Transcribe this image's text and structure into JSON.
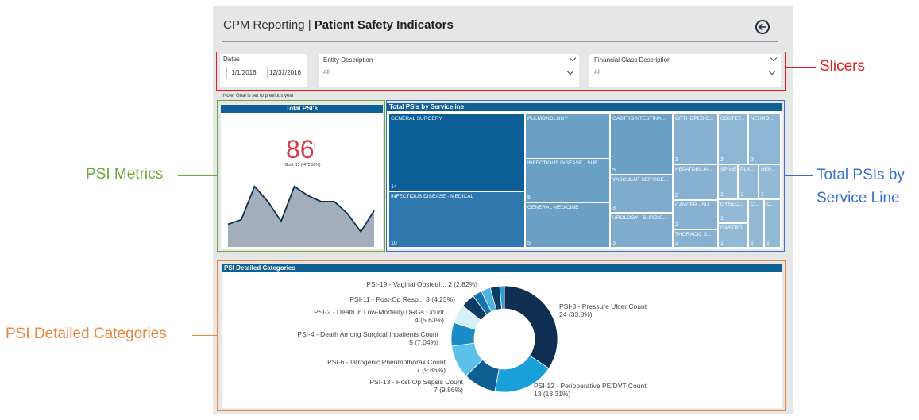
{
  "header": {
    "title_prefix": "CPM Reporting",
    "title_sep": " | ",
    "title_main": "Patient Safety Indicators"
  },
  "slicers": {
    "dates": {
      "label": "Dates",
      "start": "1/1/2016",
      "end": "12/31/2016"
    },
    "entity": {
      "label": "Entity Description",
      "value": "All"
    },
    "financial": {
      "label": "Financial Class Description",
      "value": "All"
    }
  },
  "note": "Note: Goal is set to previous year",
  "metrics": {
    "title": "Total PSI's",
    "value": "86",
    "marker": "!",
    "goal": "Goal: 15 (-473.33%)",
    "sparkline": [
      15,
      18,
      40,
      30,
      17,
      40,
      34,
      30,
      30,
      22,
      10,
      24
    ]
  },
  "treemap": {
    "title": "Total PSIs by Serviceline",
    "tiles": [
      {
        "label": "GENERAL SURGERY",
        "value": "14",
        "color": "#0b5f96"
      },
      {
        "label": "INFECTIOUS DISEASE - MEDICAL",
        "value": "10",
        "color": "#2e78ad"
      },
      {
        "label": "PULMONOLOGY",
        "value": "5",
        "color": "#6a9fc6"
      },
      {
        "label": "INFECTIOUS DISEASE - SUR...",
        "value": "5",
        "color": "#6a9fc6"
      },
      {
        "label": "GENERAL MEDICINE",
        "value": "5",
        "color": "#6a9fc6"
      },
      {
        "label": "GASTROINTESTINA...",
        "value": "5",
        "color": "#6a9fc6"
      },
      {
        "label": "VASCULAR SERVICE...",
        "value": "3",
        "color": "#7fabcd"
      },
      {
        "label": "UROLOGY - SURGIC...",
        "value": "3",
        "color": "#7fabcd"
      },
      {
        "label": "ORTHOPEDIC...",
        "value": "3",
        "color": "#86b1d1"
      },
      {
        "label": "HEPATOBILIA...",
        "value": "2",
        "color": "#86b1d1"
      },
      {
        "label": "CANCER - SU...",
        "value": "2",
        "color": "#86b1d1"
      },
      {
        "label": "THORACIC S...",
        "value": "2",
        "color": "#86b1d1"
      },
      {
        "label": "OBSTET...",
        "value": "2",
        "color": "#8db6d4"
      },
      {
        "label": "NEURO...",
        "value": "2",
        "color": "#8db6d4"
      },
      {
        "label": "SPINE",
        "value": "1",
        "color": "#92b9d6"
      },
      {
        "label": "PLA...",
        "value": "1",
        "color": "#92b9d6"
      },
      {
        "label": "NEP...",
        "value": "1",
        "color": "#92b9d6"
      },
      {
        "label": "GYNEC...",
        "value": "1",
        "color": "#92b9d6"
      },
      {
        "label": "GASTRO...",
        "value": "1",
        "color": "#92b9d6"
      },
      {
        "label": "C...",
        "value": "1",
        "color": "#92b9d6"
      },
      {
        "label": "C...",
        "value": "1",
        "color": "#92b9d6"
      }
    ]
  },
  "detail": {
    "title": "PSI Detailed Categories",
    "slices": [
      {
        "label": "PSI-3 - Pressure Ulcer Count",
        "value_text": "24 (33.8%)",
        "value": 24,
        "color": "#0e2f52"
      },
      {
        "label": "PSI-12 - Perioperative PE/DVT Count",
        "value_text": "13 (18.31%)",
        "value": 13,
        "color": "#1aa0d8"
      },
      {
        "label": "PSI-13 - Post-Op Sepsis Count",
        "value_text": "7 (9.86%)",
        "value": 7,
        "color": "#0e5f93"
      },
      {
        "label": "PSI-6 - Iatrogenic Pneumothorax Count",
        "value_text": "7 (9.86%)",
        "value": 7,
        "color": "#5bc1e8"
      },
      {
        "label": "PSI-4 - Death Among Surgical Inpatients Count",
        "value_text": "5 (7.04%)",
        "value": 5,
        "color": "#1b8cc6"
      },
      {
        "label": "PSI-2 - Death in Low-Mortality DRGs Count",
        "value_text": "4 (5.63%)",
        "value": 4,
        "color": "#d6f0fa"
      },
      {
        "label": "PSI-11 - Post-Op Resp...",
        "value_text": "3 (4.23%)",
        "value": 3,
        "color": "#0e3a66"
      },
      {
        "label": "PSI-19 - Vaginal Obstetri...",
        "value_text": "2 (2.82%)",
        "value": 2,
        "color": "#1672ad"
      },
      {
        "label": "",
        "value_text": "",
        "value": 2,
        "color": "#4fb3e2"
      },
      {
        "label": "",
        "value_text": "",
        "value": 2,
        "color": "#0b3d66"
      },
      {
        "label": "",
        "value_text": "",
        "value": 1,
        "color": "#2d9fd8"
      }
    ]
  },
  "callouts": {
    "slicers": "Slicers",
    "metrics": "PSI Metrics",
    "treemap_1": "Total PSIs by",
    "treemap_2": "Service Line",
    "detail": "PSI Detailed Categories",
    "colors": {
      "red": "#e02020",
      "green": "#6aaa3c",
      "blue": "#3a6fd0",
      "orange": "#e8843c"
    }
  }
}
